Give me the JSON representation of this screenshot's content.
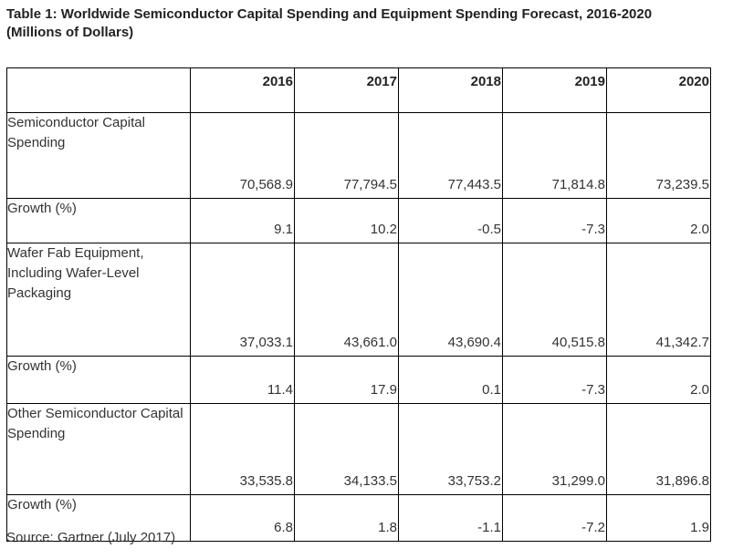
{
  "title_line1": "Table 1: Worldwide Semiconductor Capital Spending and Equipment Spending Forecast, 2016-2020",
  "title_line2": "(Millions of Dollars)",
  "years": [
    "2016",
    "2017",
    "2018",
    "2019",
    "2020"
  ],
  "rows": [
    {
      "label": "Semiconductor Capital Spending",
      "values": [
        "70,568.9",
        "77,794.5",
        "77,443.5",
        "71,814.8",
        "73,239.5"
      ]
    },
    {
      "label": "Growth (%)",
      "values": [
        "9.1",
        "10.2",
        "-0.5",
        "-7.3",
        "2.0"
      ]
    },
    {
      "label": "Wafer Fab Equipment, Including Wafer-Level Packaging",
      "values": [
        "37,033.1",
        "43,661.0",
        "43,690.4",
        "40,515.8",
        "41,342.7"
      ]
    },
    {
      "label": "Growth (%)",
      "values": [
        "11.4",
        "17.9",
        "0.1",
        "-7.3",
        "2.0"
      ]
    },
    {
      "label": "Other Semiconductor Capital Spending",
      "values": [
        "33,535.8",
        "34,133.5",
        "33,753.2",
        "31,299.0",
        "31,896.8"
      ]
    },
    {
      "label": "Growth (%)",
      "values": [
        "6.8",
        "1.8",
        "-1.1",
        "-7.2",
        "1.9"
      ]
    }
  ],
  "source": "Source: Gartner (July 2017)"
}
